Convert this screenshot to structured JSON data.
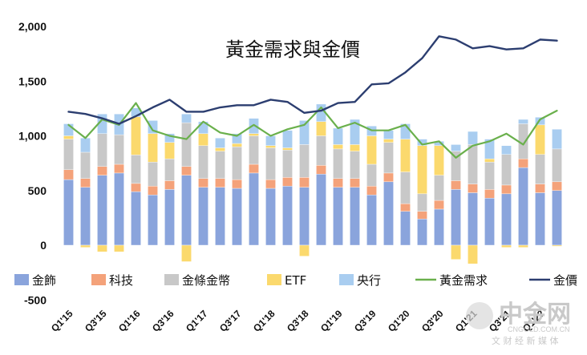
{
  "chart_data": {
    "type": "bar",
    "stacked": true,
    "title": "黃金需求與金價",
    "xlabel": "",
    "ylabel": "",
    "ylim": [
      -500,
      2000
    ],
    "yticks": [
      -500,
      0,
      500,
      1000,
      1500,
      2000
    ],
    "ytick_labels": [
      "-500",
      "0",
      "500",
      "1,000",
      "1,500",
      "2,000"
    ],
    "grid": false,
    "legend_position": "bottom",
    "categories": [
      "Q1'15",
      "Q2'15",
      "Q3'15",
      "Q4'15",
      "Q1'16",
      "Q2'16",
      "Q3'16",
      "Q4'16",
      "Q1'17",
      "Q2'17",
      "Q3'17",
      "Q4'17",
      "Q1'18",
      "Q2'18",
      "Q3'18",
      "Q4'18",
      "Q1'19",
      "Q2'19",
      "Q3'19",
      "Q4'19",
      "Q1'20",
      "Q2'20",
      "Q3'20",
      "Q4'20",
      "Q1'21",
      "Q2'21",
      "Q3'21",
      "Q4'21",
      "Q1'22",
      "Q2'22"
    ],
    "xtick_labels": [
      "Q1'15",
      "Q3'15",
      "Q1'16",
      "Q3'16",
      "Q1'17",
      "Q3'17",
      "Q1'18",
      "Q3'18",
      "Q1'19",
      "Q3'19",
      "Q1'20",
      "Q3'20",
      "Q1'21",
      "Q3'21",
      "Q1'22"
    ],
    "series": [
      {
        "name": "金飾",
        "kind": "bar",
        "color": "#8aa4dc",
        "values": [
          600,
          530,
          640,
          660,
          490,
          460,
          510,
          640,
          530,
          530,
          520,
          660,
          520,
          540,
          530,
          650,
          530,
          530,
          460,
          580,
          310,
          240,
          330,
          510,
          480,
          430,
          470,
          710,
          480,
          500
        ]
      },
      {
        "name": "科技",
        "kind": "bar",
        "color": "#f4a27a",
        "values": [
          90,
          80,
          80,
          80,
          75,
          80,
          80,
          80,
          80,
          80,
          80,
          80,
          80,
          80,
          90,
          80,
          80,
          80,
          80,
          80,
          70,
          70,
          80,
          80,
          80,
          80,
          80,
          80,
          80,
          80
        ]
      },
      {
        "name": "金條金幣",
        "kind": "bar",
        "color": "#c8c8c8",
        "values": [
          280,
          240,
          300,
          270,
          260,
          220,
          200,
          400,
          300,
          250,
          300,
          260,
          290,
          250,
          300,
          270,
          270,
          250,
          200,
          280,
          290,
          160,
          230,
          270,
          360,
          250,
          280,
          320,
          270,
          300
        ]
      },
      {
        "name": "ETF",
        "kind": "bar",
        "color": "#fbd96d",
        "values": [
          30,
          -20,
          -60,
          -60,
          350,
          260,
          150,
          -150,
          110,
          30,
          30,
          20,
          20,
          20,
          -100,
          130,
          40,
          60,
          260,
          30,
          300,
          440,
          270,
          -130,
          -170,
          30,
          -20,
          -20,
          270,
          -10
        ]
      },
      {
        "name": "央行",
        "kind": "bar",
        "color": "#a9cdf0",
        "values": [
          110,
          130,
          180,
          190,
          80,
          120,
          80,
          80,
          110,
          90,
          90,
          140,
          90,
          160,
          220,
          160,
          150,
          230,
          90,
          80,
          140,
          60,
          40,
          60,
          120,
          180,
          80,
          40,
          70,
          180
        ]
      },
      {
        "name": "黃金需求",
        "kind": "line",
        "color": "#6ab04c",
        "values": [
          1100,
          980,
          1150,
          1100,
          1300,
          1050,
          1000,
          970,
          1130,
          1030,
          1000,
          1100,
          1000,
          1060,
          1100,
          1260,
          1070,
          1120,
          1050,
          1050,
          1100,
          920,
          950,
          800,
          910,
          950,
          1020,
          920,
          1150,
          1230
        ]
      },
      {
        "name": "金價",
        "kind": "line",
        "color": "#2c3e70",
        "values": [
          1220,
          1200,
          1160,
          1110,
          1180,
          1260,
          1330,
          1220,
          1220,
          1260,
          1280,
          1280,
          1330,
          1310,
          1210,
          1230,
          1300,
          1310,
          1470,
          1480,
          1580,
          1710,
          1910,
          1880,
          1800,
          1820,
          1790,
          1800,
          1880,
          1870
        ]
      }
    ]
  },
  "legend_labels": [
    "金飾",
    "科技",
    "金條金幣",
    "ETF",
    "央行",
    "黃金需求",
    "金價"
  ],
  "watermark": {
    "brand": "中金网",
    "url": "CNGOLD.COM.CN",
    "slogan": "文 财 经 新 媒 体"
  }
}
